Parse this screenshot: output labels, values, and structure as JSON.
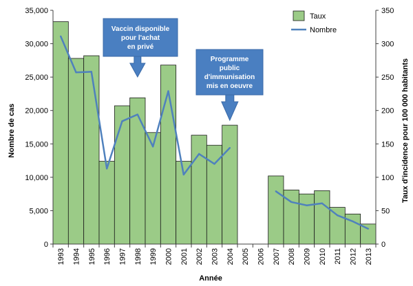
{
  "chart_data": {
    "type": "bar",
    "categories": [
      "1993",
      "1994",
      "1995",
      "1996",
      "1997",
      "1998",
      "1999",
      "2000",
      "2001",
      "2002",
      "2003",
      "2004",
      "2005",
      "2006",
      "2007",
      "2008",
      "2009",
      "2010",
      "2011",
      "2012",
      "2013"
    ],
    "series": [
      {
        "name": "Taux",
        "kind": "bar",
        "axis": "right",
        "values": [
          333,
          278,
          282,
          124,
          207,
          219,
          167,
          268,
          124,
          163,
          148,
          178,
          null,
          null,
          102,
          81,
          75,
          80,
          55,
          45,
          30
        ]
      },
      {
        "name": "Nombre",
        "kind": "line",
        "axis": "left",
        "values": [
          31100,
          25700,
          25800,
          11300,
          18400,
          19400,
          14600,
          22900,
          10400,
          13500,
          12000,
          14400,
          null,
          null,
          7900,
          6300,
          5800,
          6100,
          4300,
          3400,
          2300
        ]
      }
    ],
    "xlabel": "Année",
    "ylabel_left": "Nombre de cas",
    "ylabel_right": "Taux d'incidence pour 100 000 habitants",
    "ylim_left": [
      0,
      35000
    ],
    "ylim_right": [
      0,
      350
    ],
    "yticks_left": [
      "0",
      "5,000",
      "10,000",
      "15,000",
      "20,000",
      "25,000",
      "30,000",
      "35,000"
    ],
    "yticks_right": [
      "0",
      "50",
      "100",
      "150",
      "200",
      "250",
      "300",
      "350"
    ],
    "legend": {
      "position": "top-right",
      "entries": [
        "Taux",
        "Nombre"
      ]
    },
    "annotations": [
      {
        "lines": [
          "Vaccin disponible",
          "pour l'achat",
          "en privé"
        ],
        "category": "1998"
      },
      {
        "lines": [
          "Programme",
          "public",
          "d'immunisation",
          "mis en oeuvre"
        ],
        "category": "2004"
      }
    ],
    "colors": {
      "bar_fill": "#9bcb87",
      "bar_stroke": "#1a1a1a",
      "line": "#4f81bd",
      "callout": "#4a7fc1",
      "callout_stroke": "#3a6aa8"
    }
  }
}
